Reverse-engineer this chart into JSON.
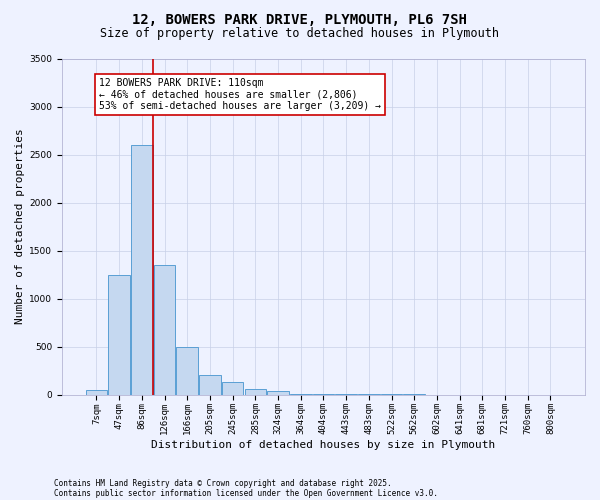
{
  "title": "12, BOWERS PARK DRIVE, PLYMOUTH, PL6 7SH",
  "subtitle": "Size of property relative to detached houses in Plymouth",
  "xlabel": "Distribution of detached houses by size in Plymouth",
  "ylabel": "Number of detached properties",
  "categories": [
    "7sqm",
    "47sqm",
    "86sqm",
    "126sqm",
    "166sqm",
    "205sqm",
    "245sqm",
    "285sqm",
    "324sqm",
    "364sqm",
    "404sqm",
    "443sqm",
    "483sqm",
    "522sqm",
    "562sqm",
    "602sqm",
    "641sqm",
    "681sqm",
    "721sqm",
    "760sqm",
    "800sqm"
  ],
  "values": [
    50,
    1250,
    2600,
    1350,
    500,
    200,
    130,
    60,
    40,
    8,
    5,
    3,
    2,
    1,
    1,
    0,
    0,
    0,
    0,
    0,
    0
  ],
  "bar_color": "#c5d8f0",
  "bar_edge_color": "#5a9fd4",
  "vline_color": "#cc0000",
  "ylim": [
    0,
    3500
  ],
  "yticks": [
    0,
    500,
    1000,
    1500,
    2000,
    2500,
    3000,
    3500
  ],
  "annotation_text": "12 BOWERS PARK DRIVE: 110sqm\n← 46% of detached houses are smaller (2,806)\n53% of semi-detached houses are larger (3,209) →",
  "annotation_box_color": "#ffffff",
  "annotation_box_edge": "#cc0000",
  "footer_line1": "Contains HM Land Registry data © Crown copyright and database right 2025.",
  "footer_line2": "Contains public sector information licensed under the Open Government Licence v3.0.",
  "bg_color": "#eef2ff",
  "plot_bg_color": "#eef2ff",
  "title_fontsize": 10,
  "subtitle_fontsize": 8.5,
  "tick_fontsize": 6.5,
  "ylabel_fontsize": 8,
  "xlabel_fontsize": 8,
  "annotation_fontsize": 7,
  "footer_fontsize": 5.5,
  "grid_color": "#c8d0e8",
  "vline_x_index": 2
}
